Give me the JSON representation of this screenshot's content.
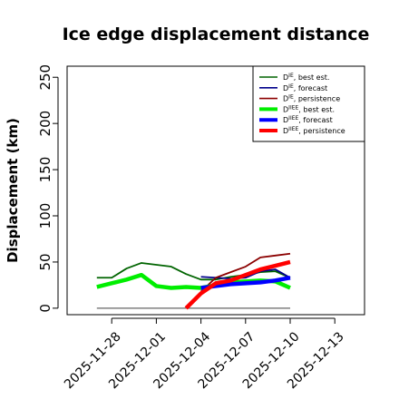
{
  "chart_data": {
    "type": "line",
    "title": "Ice edge displacement distance",
    "ylabel": "Displacement (km)",
    "xlabel": "",
    "ylim": [
      -7,
      262
    ],
    "xlim": [
      "2025-11-25",
      "2025-12-15"
    ],
    "yticks": [
      0,
      50,
      100,
      150,
      200,
      250
    ],
    "xticks": [
      "2025-11-28",
      "2025-12-01",
      "2025-12-04",
      "2025-12-07",
      "2025-12-10",
      "2025-12-13"
    ],
    "highlight_xtick": "2025-12-04",
    "highlight_color": "#228b22",
    "legend_position": "top-right",
    "grid": false,
    "series": [
      {
        "name": "D^IE, best est.",
        "color": "#006400",
        "width": "thin",
        "x": [
          "2025-11-27",
          "2025-11-28",
          "2025-11-29",
          "2025-11-30",
          "2025-12-01",
          "2025-12-02",
          "2025-12-03",
          "2025-12-04",
          "2025-12-05",
          "2025-12-06",
          "2025-12-07",
          "2025-12-08",
          "2025-12-09",
          "2025-12-10"
        ],
        "values": [
          33,
          33,
          43,
          49,
          47,
          45,
          37,
          31,
          31,
          34,
          36,
          39,
          40,
          33
        ]
      },
      {
        "name": "D^IE, forecast",
        "color": "#00008b",
        "width": "thin",
        "x": [
          "2025-12-04",
          "2025-12-05",
          "2025-12-06",
          "2025-12-07",
          "2025-12-08",
          "2025-12-09",
          "2025-12-10"
        ],
        "values": [
          34,
          33,
          32,
          33,
          40,
          42,
          33
        ]
      },
      {
        "name": "D^IE, persistence",
        "color": "#8b0000",
        "width": "thin",
        "x": [
          "2025-12-04",
          "2025-12-05",
          "2025-12-06",
          "2025-12-07",
          "2025-12-08",
          "2025-12-09",
          "2025-12-10"
        ],
        "values": [
          18,
          33,
          39,
          45,
          55,
          57,
          59
        ]
      },
      {
        "name": "D^IIEE, best est.",
        "color": "#00ee00",
        "width": "thick",
        "x": [
          "2025-11-27",
          "2025-11-28",
          "2025-11-29",
          "2025-11-30",
          "2025-12-01",
          "2025-12-02",
          "2025-12-03",
          "2025-12-04",
          "2025-12-05",
          "2025-12-06",
          "2025-12-07",
          "2025-12-08",
          "2025-12-09",
          "2025-12-10"
        ],
        "values": [
          23,
          27,
          31,
          36,
          24,
          22,
          23,
          22,
          25,
          28,
          29,
          30,
          29,
          22
        ]
      },
      {
        "name": "D^IIEE, forecast",
        "color": "#0000ff",
        "width": "thick",
        "x": [
          "2025-12-04",
          "2025-12-05",
          "2025-12-06",
          "2025-12-07",
          "2025-12-08",
          "2025-12-09",
          "2025-12-10"
        ],
        "values": [
          22,
          24,
          26,
          27,
          28,
          30,
          33
        ]
      },
      {
        "name": "D^IIEE, persistence",
        "color": "#ff0000",
        "width": "thick",
        "x": [
          "2025-12-03",
          "2025-12-04",
          "2025-12-05",
          "2025-12-06",
          "2025-12-07",
          "2025-12-08",
          "2025-12-09",
          "2025-12-10"
        ],
        "values": [
          0,
          16,
          27,
          30,
          36,
          42,
          46,
          50
        ]
      }
    ],
    "zero_line": {
      "color": "#666666",
      "x": [
        "2025-11-27",
        "2025-12-10"
      ],
      "values": [
        0,
        0
      ]
    },
    "legend": [
      {
        "base": "D",
        "sup": "IE",
        "label": ", best est.",
        "color": "#006400",
        "width": "thin"
      },
      {
        "base": "D",
        "sup": "IE",
        "label": ", forecast",
        "color": "#00008b",
        "width": "thin"
      },
      {
        "base": "D",
        "sup": "IE",
        "label": ", persistence",
        "color": "#8b0000",
        "width": "thin"
      },
      {
        "base": "D",
        "sup": "IIEE",
        "label": ", best est.",
        "color": "#00ee00",
        "width": "thick"
      },
      {
        "base": "D",
        "sup": "IIEE",
        "label": ", forecast",
        "color": "#0000ff",
        "width": "thick"
      },
      {
        "base": "D",
        "sup": "IIEE",
        "label": ", persistence",
        "color": "#ff0000",
        "width": "thick"
      }
    ]
  }
}
